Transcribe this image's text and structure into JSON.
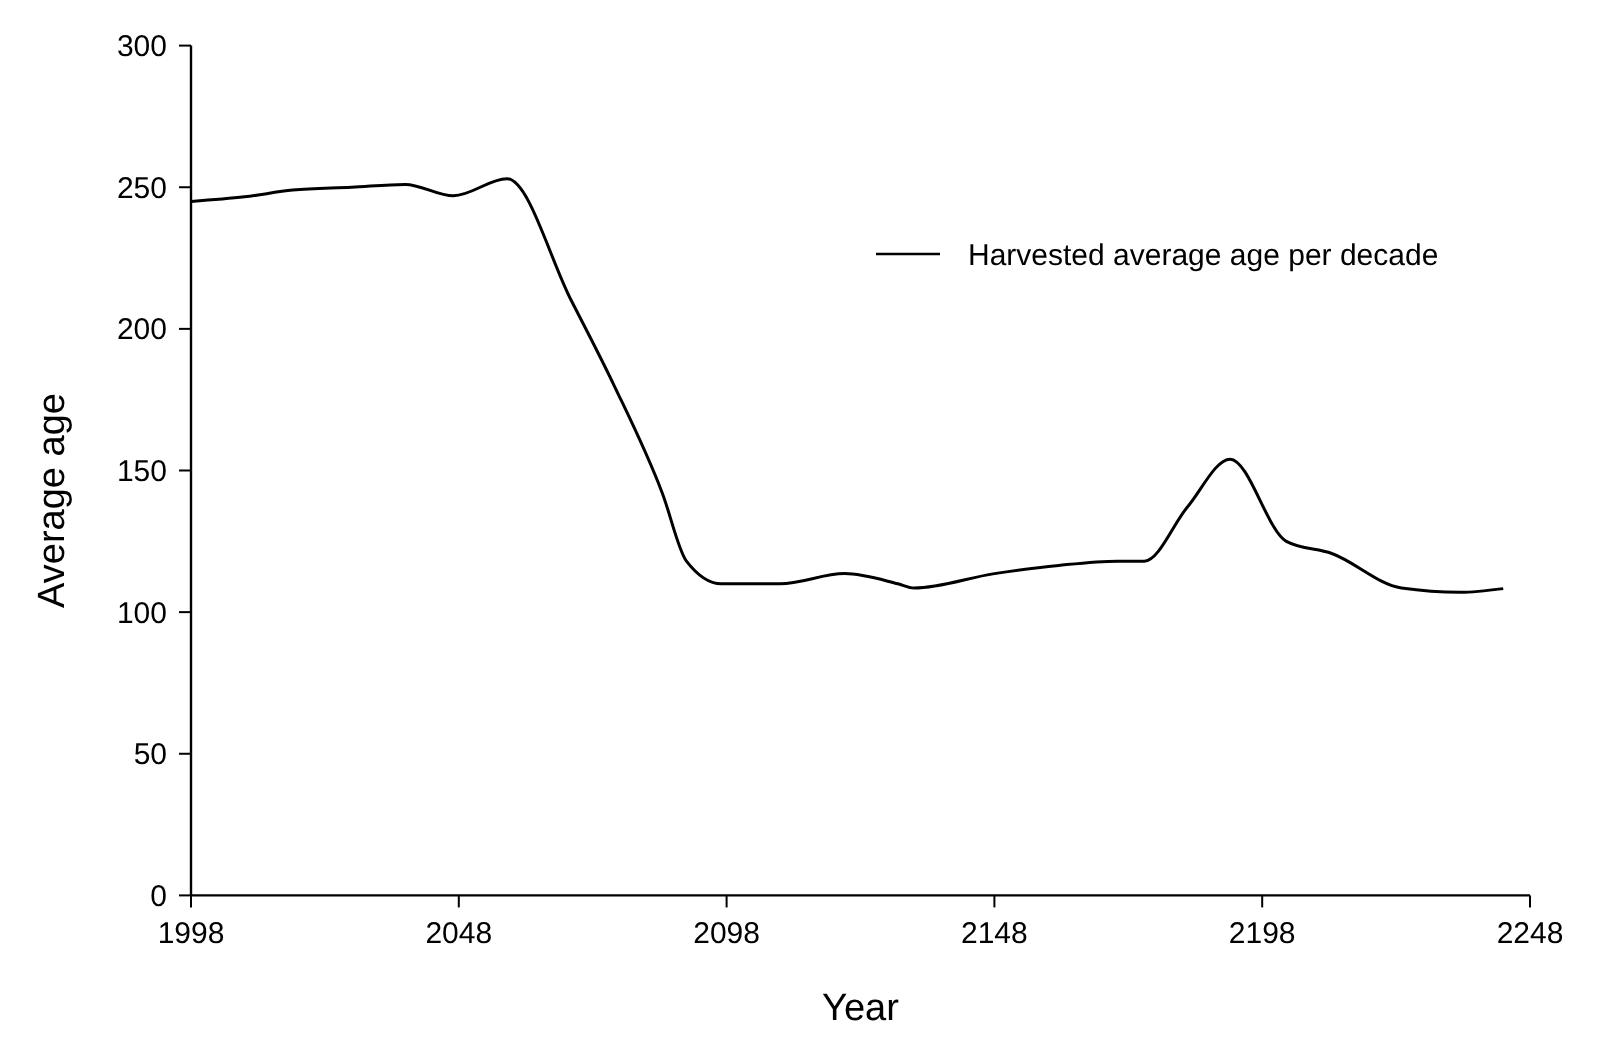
{
  "chart_data": {
    "type": "line",
    "xlabel": "Year",
    "ylabel": "Average age",
    "xlim": [
      1998,
      2248
    ],
    "xticks": [
      1998,
      2048,
      2098,
      2148,
      2198,
      2248
    ],
    "ylim": [
      0,
      300
    ],
    "yticks": [
      0,
      50,
      100,
      150,
      200,
      250,
      300
    ],
    "legend": "top right",
    "grid": false,
    "marker": "none",
    "line_style": "solid",
    "series": [
      {
        "name": "Harvested average age per decade",
        "color": "#000000",
        "x": [
          1998,
          2008,
          2017,
          2028,
          2038,
          2047,
          2057,
          2069,
          2077,
          2086,
          2090.5,
          2097,
          2104,
          2108,
          2120,
          2130,
          2133,
          2148,
          2160,
          2171,
          2176,
          2184,
          2192,
          2202.5,
          2211,
          2224,
          2235,
          2243
        ],
        "values": [
          245,
          246.6,
          249,
          250,
          251,
          247,
          253,
          210,
          180,
          142,
          118,
          110,
          110,
          110,
          113.6,
          110,
          108.5,
          113.6,
          116.5,
          118,
          118,
          137,
          154,
          125,
          120.7,
          108.5,
          107,
          108.3
        ]
      }
    ]
  }
}
